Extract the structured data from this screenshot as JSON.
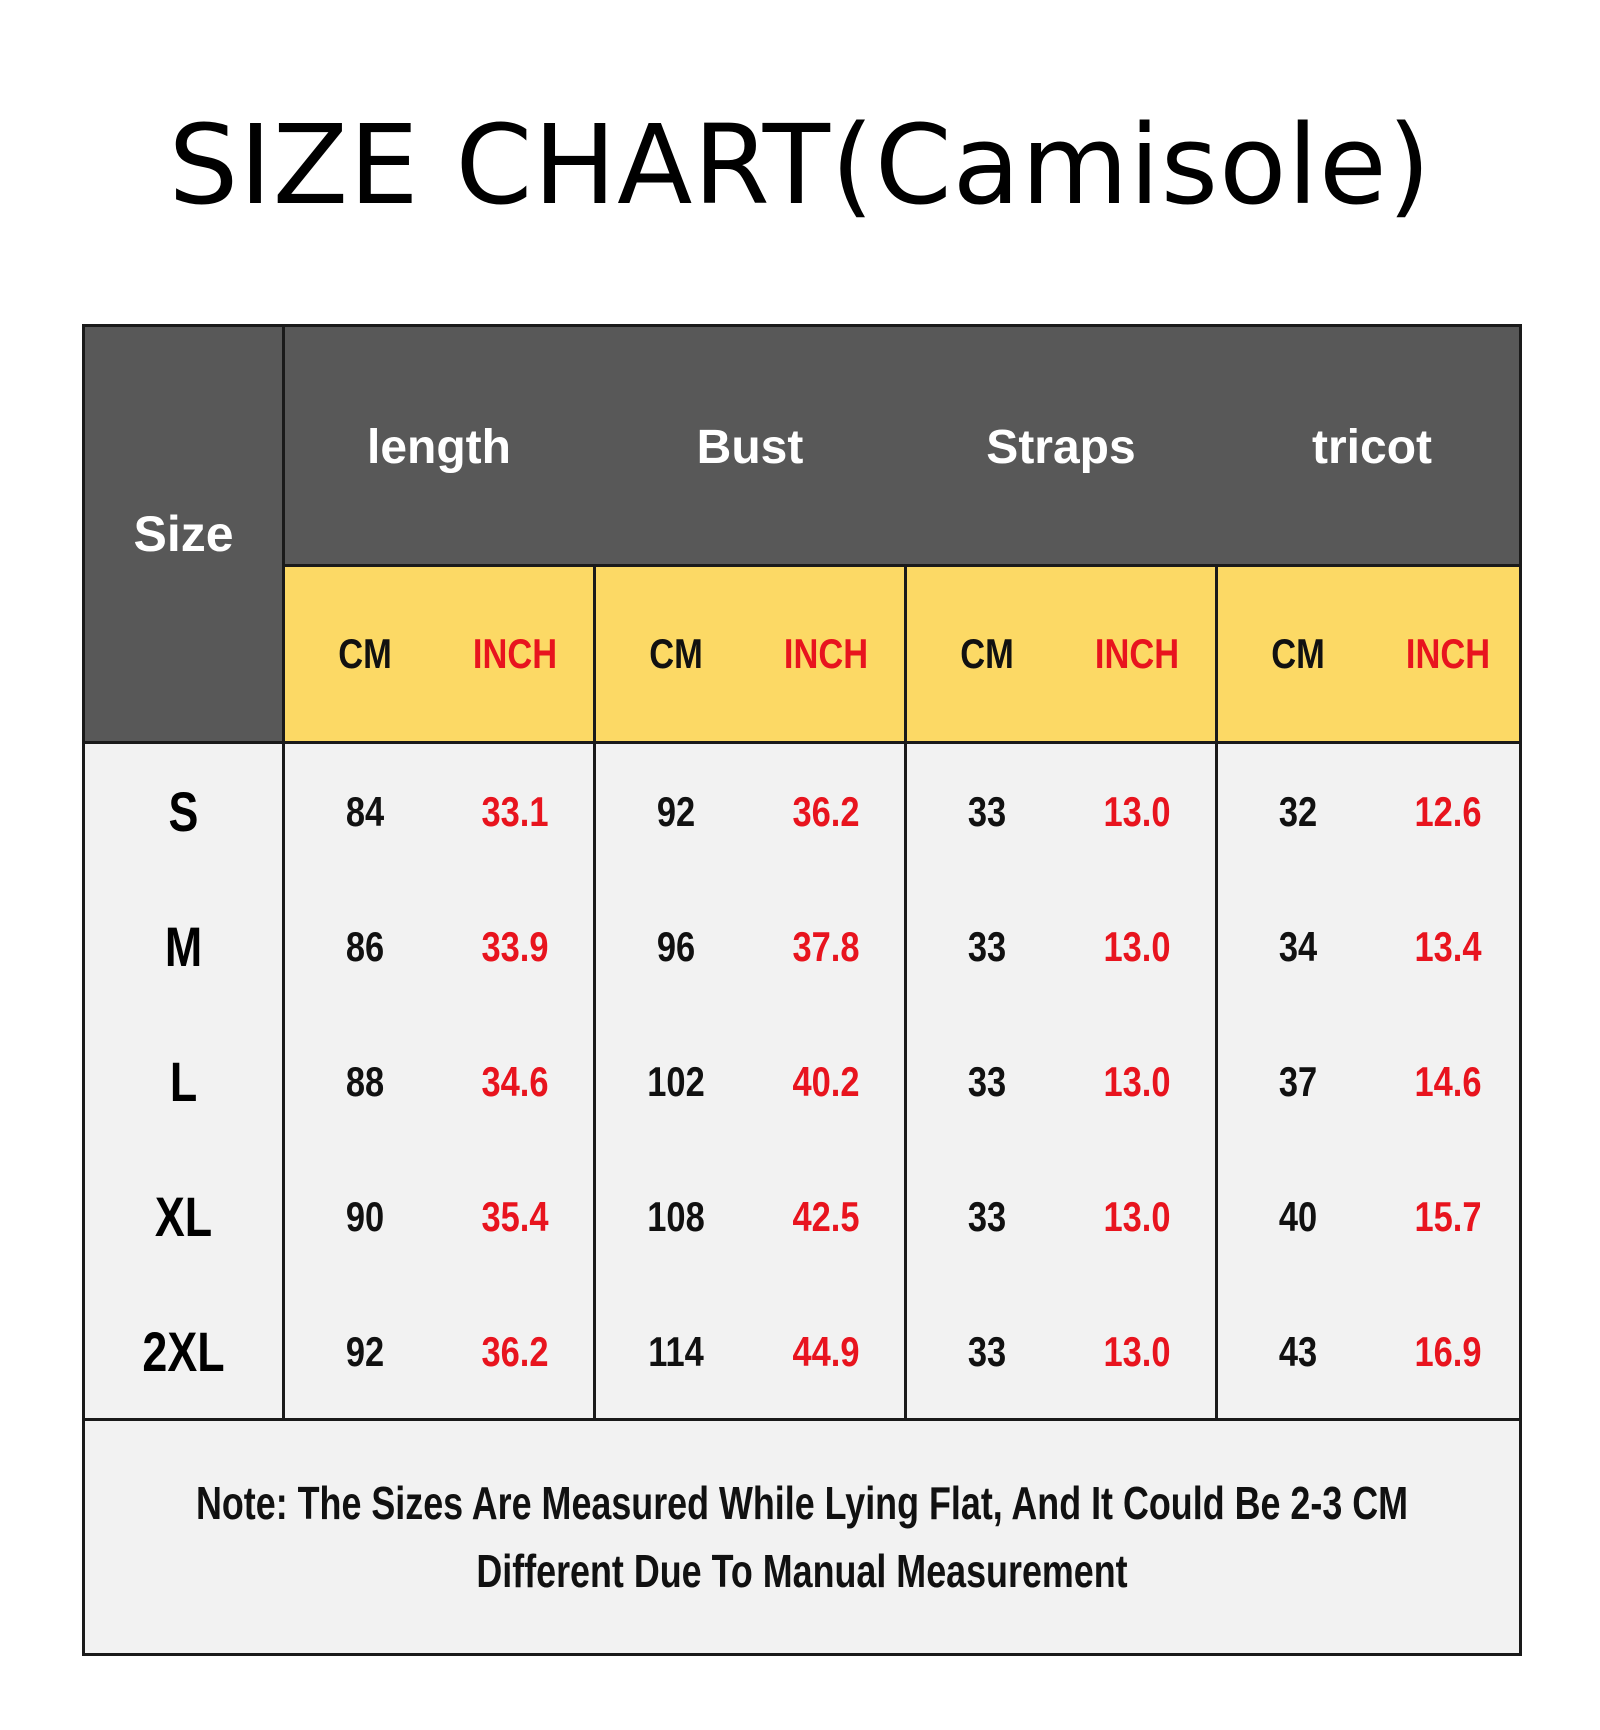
{
  "title": "SIZE CHART(Camisole)",
  "table": {
    "size_header": "Size",
    "groups": [
      "length",
      "Bust",
      "Straps",
      "tricot"
    ],
    "unit_labels": {
      "cm": "CM",
      "inch": "INCH"
    },
    "rows": [
      {
        "size": "S",
        "values": [
          "84",
          "33.1",
          "92",
          "36.2",
          "33",
          "13.0",
          "32",
          "12.6"
        ]
      },
      {
        "size": "M",
        "values": [
          "86",
          "33.9",
          "96",
          "37.8",
          "33",
          "13.0",
          "34",
          "13.4"
        ]
      },
      {
        "size": "L",
        "values": [
          "88",
          "34.6",
          "102",
          "40.2",
          "33",
          "13.0",
          "37",
          "14.6"
        ]
      },
      {
        "size": "XL",
        "values": [
          "90",
          "35.4",
          "108",
          "42.5",
          "33",
          "13.0",
          "40",
          "15.7"
        ]
      },
      {
        "size": "2XL",
        "values": [
          "92",
          "36.2",
          "114",
          "44.9",
          "33",
          "13.0",
          "43",
          "16.9"
        ]
      }
    ]
  },
  "note": "Note: The Sizes Are Measured While Lying Flat, And It Could Be 2-3 CM Different Due To Manual Measurement",
  "colors": {
    "header_bg": "#585858",
    "unit_bg": "#fcd965",
    "body_bg": "#f2f2f2",
    "inch_text": "#e8141e"
  }
}
